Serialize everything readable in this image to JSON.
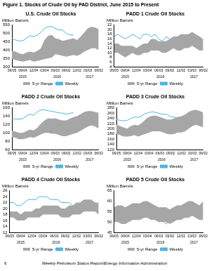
{
  "title": "Figure 1. Stocks of Crude Oil by PAD District, June 2015 to Present",
  "footer": {
    "page": "6",
    "text": "Weekly Petroleum Status Report/Energy Information Administration"
  },
  "chart_data": [
    {
      "type": "line",
      "title": "U.S. Crude Oil Stocks",
      "y_label": "Million Barrels",
      "categories": [
        "06/05",
        null,
        null,
        "09/04",
        null,
        null,
        "12/04",
        null,
        null,
        "03/04",
        null,
        null,
        "06/03",
        null,
        null,
        "09/02",
        null,
        null,
        "12/02",
        null,
        null,
        "03/03",
        null,
        null,
        "06/02"
      ],
      "periods": [
        {
          "label": "2015",
          "from": 0,
          "to": 6
        },
        {
          "label": "2016",
          "from": 7,
          "to": 18
        },
        {
          "label": "2017",
          "from": 19,
          "to": 24
        }
      ],
      "series": [
        {
          "name": "5-yr Range",
          "type": "range",
          "color": "#a6a6a6",
          "low": [
            345,
            340,
            335,
            330,
            335,
            340,
            330,
            335,
            340,
            345,
            350,
            355,
            375,
            370,
            365,
            360,
            365,
            370,
            365,
            375,
            390,
            400,
            410,
            410,
            400
          ],
          "high": [
            395,
            390,
            380,
            375,
            385,
            390,
            385,
            395,
            410,
            460,
            485,
            490,
            470,
            465,
            455,
            460,
            465,
            470,
            460,
            480,
            505,
            530,
            540,
            535,
            525
          ]
        },
        {
          "name": "Weekly",
          "type": "line",
          "color": "#4fb3e0",
          "values": [
            470,
            460,
            455,
            455,
            470,
            485,
            480,
            490,
            505,
            530,
            540,
            540,
            530,
            520,
            520,
            500,
            490,
            490,
            null,
            null,
            null,
            null,
            null,
            null,
            null
          ]
        }
      ],
      "ylim": [
        300,
        550
      ],
      "yticks": [
        300,
        350,
        400,
        450,
        500,
        550
      ],
      "grid": false,
      "legend": "bottom"
    },
    {
      "type": "line",
      "title": "PADD 1 Crude Oil Stocks",
      "y_label": "Million Barrels",
      "categories": [
        "06/05",
        null,
        null,
        "09/04",
        null,
        null,
        "12/04",
        null,
        null,
        "03/04",
        null,
        null,
        "06/03",
        null,
        null,
        "09/02",
        null,
        null,
        "12/02",
        null,
        null,
        "03/03",
        null,
        null,
        "06/02"
      ],
      "periods": [
        {
          "label": "2015",
          "from": 0,
          "to": 6
        },
        {
          "label": "2016",
          "from": 7,
          "to": 18
        },
        {
          "label": "2017",
          "from": 19,
          "to": 24
        }
      ],
      "series": [
        {
          "name": "5-yr Range",
          "type": "range",
          "color": "#a6a6a6",
          "low": [
            10,
            10,
            9,
            8,
            9,
            10,
            9,
            9,
            10,
            10,
            11,
            11,
            11,
            10,
            10,
            11,
            12,
            11,
            11,
            12,
            12,
            13,
            12,
            11,
            11
          ],
          "high": [
            14,
            14,
            13,
            13,
            13,
            13,
            12,
            13,
            14,
            14,
            16,
            16,
            15,
            15,
            15,
            16,
            17,
            17,
            18,
            18,
            18,
            19,
            18,
            17,
            16
          ]
        },
        {
          "name": "Weekly",
          "type": "line",
          "color": "#4fb3e0",
          "values": [
            17,
            18,
            17,
            16,
            17,
            18,
            17,
            16,
            18,
            18,
            17,
            18,
            16,
            15,
            17,
            16,
            16,
            15,
            null,
            null,
            null,
            null,
            null,
            null,
            null
          ]
        }
      ],
      "ylim": [
        4,
        22
      ],
      "yticks": [
        4,
        6,
        8,
        10,
        12,
        14,
        16,
        18,
        20,
        22
      ],
      "grid": false,
      "legend": "bottom"
    },
    {
      "type": "line",
      "title": "PADD 2 Crude Oil Stocks",
      "y_label": "Million Barrels",
      "categories": [
        "06/05",
        null,
        null,
        "09/04",
        null,
        null,
        "12/04",
        null,
        null,
        "03/04",
        null,
        null,
        "06/03",
        null,
        null,
        "09/02",
        null,
        null,
        "12/02",
        null,
        null,
        "03/03",
        null,
        null,
        "06/02"
      ],
      "periods": [
        {
          "label": "2015",
          "from": 0,
          "to": 6
        },
        {
          "label": "2016",
          "from": 7,
          "to": 18
        },
        {
          "label": "2017",
          "from": 19,
          "to": 24
        }
      ],
      "series": [
        {
          "name": "5-yr Range",
          "type": "range",
          "color": "#a6a6a6",
          "low": [
            90,
            88,
            85,
            85,
            87,
            90,
            88,
            92,
            96,
            100,
            100,
            98,
            98,
            95,
            92,
            92,
            95,
            98,
            100,
            105,
            110,
            115,
            118,
            115,
            110
          ],
          "high": [
            105,
            103,
            100,
            100,
            104,
            108,
            106,
            112,
            122,
            130,
            135,
            134,
            135,
            132,
            130,
            130,
            134,
            138,
            140,
            145,
            150,
            152,
            152,
            150,
            148
          ]
        },
        {
          "name": "Weekly",
          "type": "line",
          "color": "#4fb3e0",
          "values": [
            135,
            133,
            133,
            134,
            140,
            145,
            142,
            150,
            155,
            155,
            153,
            152,
            150,
            148,
            147,
            145,
            147,
            148,
            null,
            null,
            null,
            null,
            null,
            null,
            null
          ]
        }
      ],
      "ylim": [
        60,
        160
      ],
      "yticks": [
        60,
        80,
        100,
        120,
        140,
        160
      ],
      "grid": false,
      "legend": "bottom"
    },
    {
      "type": "line",
      "title": "PADD 3 Crude Oil Stocks",
      "y_label": "Million Barrels",
      "categories": [
        "06/05",
        null,
        null,
        "09/04",
        null,
        null,
        "12/04",
        null,
        null,
        "03/04",
        null,
        null,
        "06/03",
        null,
        null,
        "09/02",
        null,
        null,
        "12/02",
        null,
        null,
        "03/03",
        null,
        null,
        "06/02"
      ],
      "periods": [
        {
          "label": "2015",
          "from": 0,
          "to": 6
        },
        {
          "label": "2016",
          "from": 7,
          "to": 18
        },
        {
          "label": "2017",
          "from": 19,
          "to": 24
        }
      ],
      "series": [
        {
          "name": "5-yr Range",
          "type": "range",
          "color": "#a6a6a6",
          "low": [
            180,
            175,
            170,
            170,
            172,
            175,
            170,
            175,
            180,
            185,
            190,
            190,
            190,
            185,
            180,
            178,
            180,
            185,
            185,
            190,
            200,
            210,
            215,
            210,
            205
          ],
          "high": [
            215,
            210,
            205,
            200,
            210,
            215,
            212,
            222,
            235,
            245,
            250,
            250,
            245,
            240,
            235,
            235,
            240,
            245,
            248,
            255,
            265,
            270,
            272,
            268,
            262
          ]
        },
        {
          "name": "Weekly",
          "type": "line",
          "color": "#4fb3e0",
          "values": [
            235,
            232,
            230,
            232,
            240,
            245,
            243,
            250,
            258,
            262,
            265,
            262,
            258,
            255,
            255,
            245,
            245,
            240,
            null,
            null,
            null,
            null,
            null,
            null,
            null
          ]
        }
      ],
      "ylim": [
        120,
        280
      ],
      "yticks": [
        120,
        140,
        160,
        180,
        200,
        220,
        240,
        260,
        280
      ],
      "grid": false,
      "legend": "bottom"
    },
    {
      "type": "line",
      "title": "PADD 4 Crude Oil Stocks",
      "y_label": "Million Barrels",
      "categories": [
        "06/05",
        null,
        null,
        "09/04",
        null,
        null,
        "12/04",
        null,
        null,
        "03/04",
        null,
        null,
        "06/03",
        null,
        null,
        "09/02",
        null,
        null,
        "12/02",
        null,
        null,
        "03/03",
        null,
        null,
        "06/02"
      ],
      "periods": [
        {
          "label": "2015",
          "from": 0,
          "to": 6
        },
        {
          "label": "2016",
          "from": 7,
          "to": 18
        },
        {
          "label": "2017",
          "from": 19,
          "to": 24
        }
      ],
      "series": [
        {
          "name": "5-yr Range",
          "type": "range",
          "color": "#a6a6a6",
          "low": [
            17,
            17,
            16,
            16,
            16,
            17,
            17,
            17,
            17,
            18,
            18,
            18,
            18,
            18,
            17,
            17,
            17,
            18,
            18,
            18,
            19,
            19,
            19,
            19,
            18
          ],
          "high": [
            19,
            19,
            19,
            18,
            19,
            19,
            19,
            20,
            20,
            21,
            21,
            21,
            21,
            21,
            20,
            20,
            21,
            21,
            22,
            22,
            23,
            23,
            23,
            22,
            22
          ]
        },
        {
          "name": "Weekly",
          "type": "line",
          "color": "#4fb3e0",
          "values": [
            22,
            22,
            21,
            21,
            22,
            23,
            23,
            23,
            24,
            24,
            24,
            23,
            23,
            23,
            22,
            22,
            22,
            21,
            null,
            null,
            null,
            null,
            null,
            null,
            null
          ]
        }
      ],
      "ylim": [
        12,
        26
      ],
      "yticks": [
        12,
        14,
        16,
        18,
        20,
        22,
        24,
        26
      ],
      "grid": false,
      "legend": "bottom"
    },
    {
      "type": "line",
      "title": "PADD 5 Crude Oil Stocks",
      "y_label": "Million Barrels",
      "categories": [
        "06/05",
        null,
        null,
        "09/04",
        null,
        null,
        "12/04",
        null,
        null,
        "03/04",
        null,
        null,
        "06/03",
        null,
        null,
        "09/02",
        null,
        null,
        "12/02",
        null,
        null,
        "03/03",
        null,
        null,
        "06/02"
      ],
      "periods": [
        {
          "label": "2015",
          "from": 0,
          "to": 6
        },
        {
          "label": "2016",
          "from": 7,
          "to": 18
        },
        {
          "label": "2017",
          "from": 19,
          "to": 24
        }
      ],
      "series": [
        {
          "name": "5-yr Range",
          "type": "range",
          "color": "#a6a6a6",
          "low": [
            50,
            50,
            49,
            49,
            50,
            51,
            51,
            51,
            52,
            52,
            51,
            51,
            50,
            50,
            50,
            49,
            50,
            51,
            51,
            52,
            52,
            53,
            52,
            51,
            51
          ],
          "high": [
            57,
            58,
            58,
            57,
            58,
            59,
            59,
            59,
            60,
            60,
            59,
            58,
            57,
            57,
            57,
            56,
            57,
            58,
            58,
            59,
            60,
            60,
            59,
            58,
            60
          ]
        },
        {
          "name": "Weekly",
          "type": "line",
          "color": "#4fb3e0",
          "values": [
            55,
            56,
            53,
            52,
            54,
            55,
            56,
            53,
            54,
            55,
            53,
            52,
            50,
            51,
            49,
            51,
            53,
            55,
            null,
            null,
            null,
            null,
            null,
            null,
            null
          ]
        }
      ],
      "ylim": [
        45,
        65
      ],
      "yticks": [
        45,
        50,
        55,
        60,
        65
      ],
      "grid": false,
      "legend": "bottom"
    }
  ]
}
